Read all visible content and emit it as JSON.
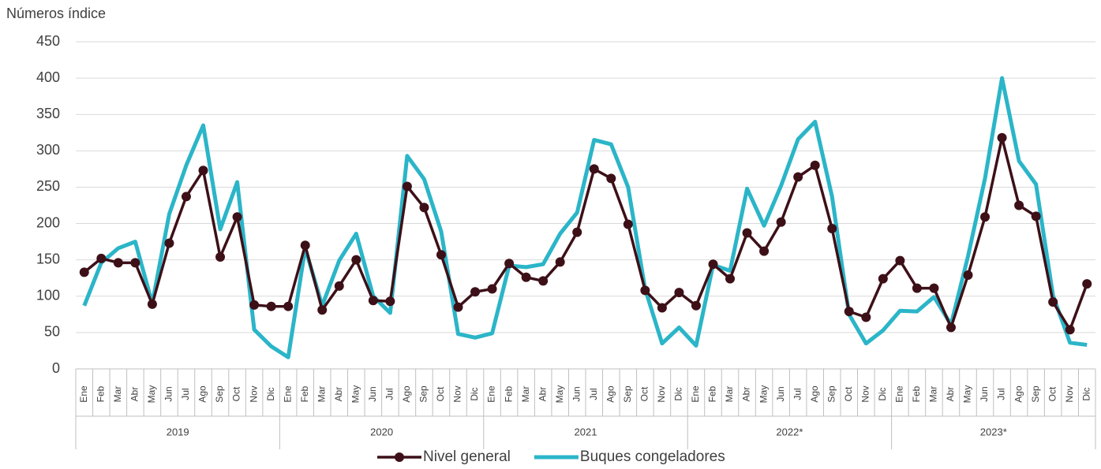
{
  "chart_data": {
    "type": "line",
    "y_axis_title": "Números índice",
    "categories": [
      "Ene",
      "Feb",
      "Mar",
      "Abr",
      "May",
      "Jun",
      "Jul",
      "Ago",
      "Sep",
      "Oct",
      "Nov",
      "Dic",
      "Ene",
      "Feb",
      "Mar",
      "Abr",
      "May",
      "Jun",
      "Jul",
      "Ago",
      "Sep",
      "Oct",
      "Nov",
      "Dic",
      "Ene",
      "Feb",
      "Mar",
      "Abr",
      "May",
      "Jun",
      "Jul",
      "Ago",
      "Sep",
      "Oct",
      "Nov",
      "Dic",
      "Ene",
      "Feb",
      "Mar",
      "Abr",
      "May",
      "Jun",
      "Jul",
      "Ago",
      "Sep",
      "Oct",
      "Nov",
      "Dic",
      "Ene",
      "Feb",
      "Mar",
      "Abr",
      "May",
      "Jun",
      "Jul",
      "Ago",
      "Sep",
      "Oct",
      "Nov",
      "Dic"
    ],
    "year_groups": [
      "2019",
      "2020",
      "2021",
      "2022*",
      "2023*"
    ],
    "series": [
      {
        "name": "Nivel general",
        "color": "#3d1018",
        "markers": true,
        "values": [
          133,
          152,
          146,
          146,
          89,
          173,
          237,
          273,
          154,
          209,
          88,
          86,
          86,
          170,
          81,
          114,
          150,
          94,
          93,
          251,
          222,
          157,
          85,
          106,
          110,
          145,
          126,
          121,
          147,
          188,
          275,
          262,
          199,
          108,
          84,
          105,
          87,
          144,
          124,
          187,
          162,
          202,
          264,
          280,
          193,
          79,
          71,
          124,
          149,
          111,
          111,
          57,
          129,
          209,
          318,
          225,
          210,
          92,
          54,
          117
        ]
      },
      {
        "name": "Buques congeladores",
        "color": "#2bb5c8",
        "markers": false,
        "values": [
          87,
          146,
          166,
          175,
          90,
          213,
          280,
          335,
          192,
          257,
          54,
          31,
          16,
          166,
          87,
          149,
          186,
          100,
          77,
          293,
          261,
          189,
          48,
          43,
          49,
          142,
          140,
          144,
          186,
          215,
          315,
          309,
          250,
          110,
          35,
          57,
          32,
          143,
          135,
          248,
          197,
          252,
          316,
          340,
          237,
          75,
          35,
          53,
          80,
          79,
          99,
          61,
          155,
          262,
          400,
          286,
          254,
          101,
          36,
          33
        ]
      }
    ],
    "ylim": [
      0,
      450
    ],
    "yticks": [
      0,
      50,
      100,
      150,
      200,
      250,
      300,
      350,
      400,
      450
    ],
    "grid": true,
    "legend": "bottom"
  }
}
